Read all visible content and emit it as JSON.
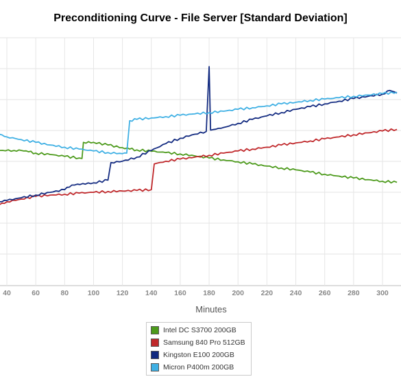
{
  "chart_data": {
    "type": "line",
    "title": "Preconditioning Curve - File Server [Standard Deviation]",
    "xlabel": "Minutes",
    "ylabel": "",
    "x_ticks": [
      40,
      60,
      80,
      100,
      120,
      140,
      160,
      180,
      200,
      220,
      240,
      260,
      280,
      300
    ],
    "x_range": [
      35,
      310
    ],
    "y_range": [
      0,
      7
    ],
    "grid": true,
    "legend_position": "bottom-center",
    "series": [
      {
        "name": "Intel DC S3700 200GB",
        "color": "#4c9a1b",
        "points": [
          [
            35,
            5.0
          ],
          [
            45,
            5.0
          ],
          [
            50,
            5.0
          ],
          [
            55,
            4.95
          ],
          [
            60,
            4.9
          ],
          [
            70,
            4.85
          ],
          [
            80,
            4.78
          ],
          [
            90,
            4.72
          ],
          [
            92,
            4.7
          ],
          [
            93,
            5.3
          ],
          [
            100,
            5.3
          ],
          [
            110,
            5.2
          ],
          [
            120,
            5.1
          ],
          [
            125,
            5.05
          ],
          [
            130,
            5.02
          ],
          [
            140,
            4.97
          ],
          [
            150,
            4.92
          ],
          [
            160,
            4.87
          ],
          [
            170,
            4.8
          ],
          [
            180,
            4.72
          ],
          [
            190,
            4.65
          ],
          [
            200,
            4.58
          ],
          [
            210,
            4.5
          ],
          [
            220,
            4.42
          ],
          [
            230,
            4.35
          ],
          [
            240,
            4.28
          ],
          [
            250,
            4.2
          ],
          [
            260,
            4.12
          ],
          [
            270,
            4.05
          ],
          [
            280,
            3.98
          ],
          [
            290,
            3.92
          ],
          [
            300,
            3.86
          ],
          [
            310,
            3.82
          ]
        ]
      },
      {
        "name": "Samsung 840 Pro 512GB",
        "color": "#c0282b",
        "points": [
          [
            35,
            3.0
          ],
          [
            40,
            3.1
          ],
          [
            50,
            3.2
          ],
          [
            60,
            3.3
          ],
          [
            70,
            3.35
          ],
          [
            80,
            3.38
          ],
          [
            90,
            3.42
          ],
          [
            100,
            3.45
          ],
          [
            110,
            3.48
          ],
          [
            120,
            3.5
          ],
          [
            130,
            3.52
          ],
          [
            140,
            3.55
          ],
          [
            142,
            4.5
          ],
          [
            150,
            4.6
          ],
          [
            160,
            4.68
          ],
          [
            170,
            4.75
          ],
          [
            180,
            4.82
          ],
          [
            190,
            4.9
          ],
          [
            200,
            4.98
          ],
          [
            210,
            5.05
          ],
          [
            220,
            5.12
          ],
          [
            230,
            5.2
          ],
          [
            240,
            5.28
          ],
          [
            250,
            5.35
          ],
          [
            260,
            5.43
          ],
          [
            270,
            5.5
          ],
          [
            280,
            5.58
          ],
          [
            290,
            5.65
          ],
          [
            300,
            5.72
          ],
          [
            310,
            5.78
          ]
        ]
      },
      {
        "name": "Kingston E100 200GB",
        "color": "#122a80",
        "points": [
          [
            35,
            3.1
          ],
          [
            40,
            3.15
          ],
          [
            50,
            3.25
          ],
          [
            60,
            3.35
          ],
          [
            70,
            3.45
          ],
          [
            80,
            3.55
          ],
          [
            85,
            3.72
          ],
          [
            100,
            3.8
          ],
          [
            110,
            3.9
          ],
          [
            112,
            4.55
          ],
          [
            120,
            4.6
          ],
          [
            130,
            4.75
          ],
          [
            140,
            5.0
          ],
          [
            150,
            5.25
          ],
          [
            160,
            5.45
          ],
          [
            170,
            5.6
          ],
          [
            178,
            5.7
          ],
          [
            180,
            8.1
          ],
          [
            181,
            5.75
          ],
          [
            190,
            5.85
          ],
          [
            200,
            6.0
          ],
          [
            210,
            6.15
          ],
          [
            220,
            6.28
          ],
          [
            230,
            6.4
          ],
          [
            240,
            6.52
          ],
          [
            250,
            6.62
          ],
          [
            260,
            6.72
          ],
          [
            270,
            6.82
          ],
          [
            280,
            6.92
          ],
          [
            290,
            7.0
          ],
          [
            300,
            7.08
          ],
          [
            305,
            7.22
          ],
          [
            310,
            7.12
          ]
        ]
      },
      {
        "name": "Micron P400m 200GB",
        "color": "#3fb0e4",
        "points": [
          [
            35,
            5.6
          ],
          [
            40,
            5.5
          ],
          [
            50,
            5.4
          ],
          [
            60,
            5.3
          ],
          [
            70,
            5.2
          ],
          [
            80,
            5.12
          ],
          [
            90,
            5.05
          ],
          [
            100,
            4.98
          ],
          [
            110,
            4.92
          ],
          [
            120,
            4.88
          ],
          [
            123,
            4.9
          ],
          [
            125,
            6.1
          ],
          [
            130,
            6.15
          ],
          [
            140,
            6.2
          ],
          [
            150,
            6.25
          ],
          [
            160,
            6.3
          ],
          [
            170,
            6.35
          ],
          [
            180,
            6.4
          ],
          [
            190,
            6.45
          ],
          [
            200,
            6.52
          ],
          [
            210,
            6.58
          ],
          [
            220,
            6.65
          ],
          [
            230,
            6.72
          ],
          [
            240,
            6.78
          ],
          [
            250,
            6.85
          ],
          [
            260,
            6.9
          ],
          [
            270,
            6.95
          ],
          [
            280,
            7.0
          ],
          [
            290,
            7.05
          ],
          [
            300,
            7.1
          ],
          [
            310,
            7.15
          ]
        ]
      }
    ]
  }
}
